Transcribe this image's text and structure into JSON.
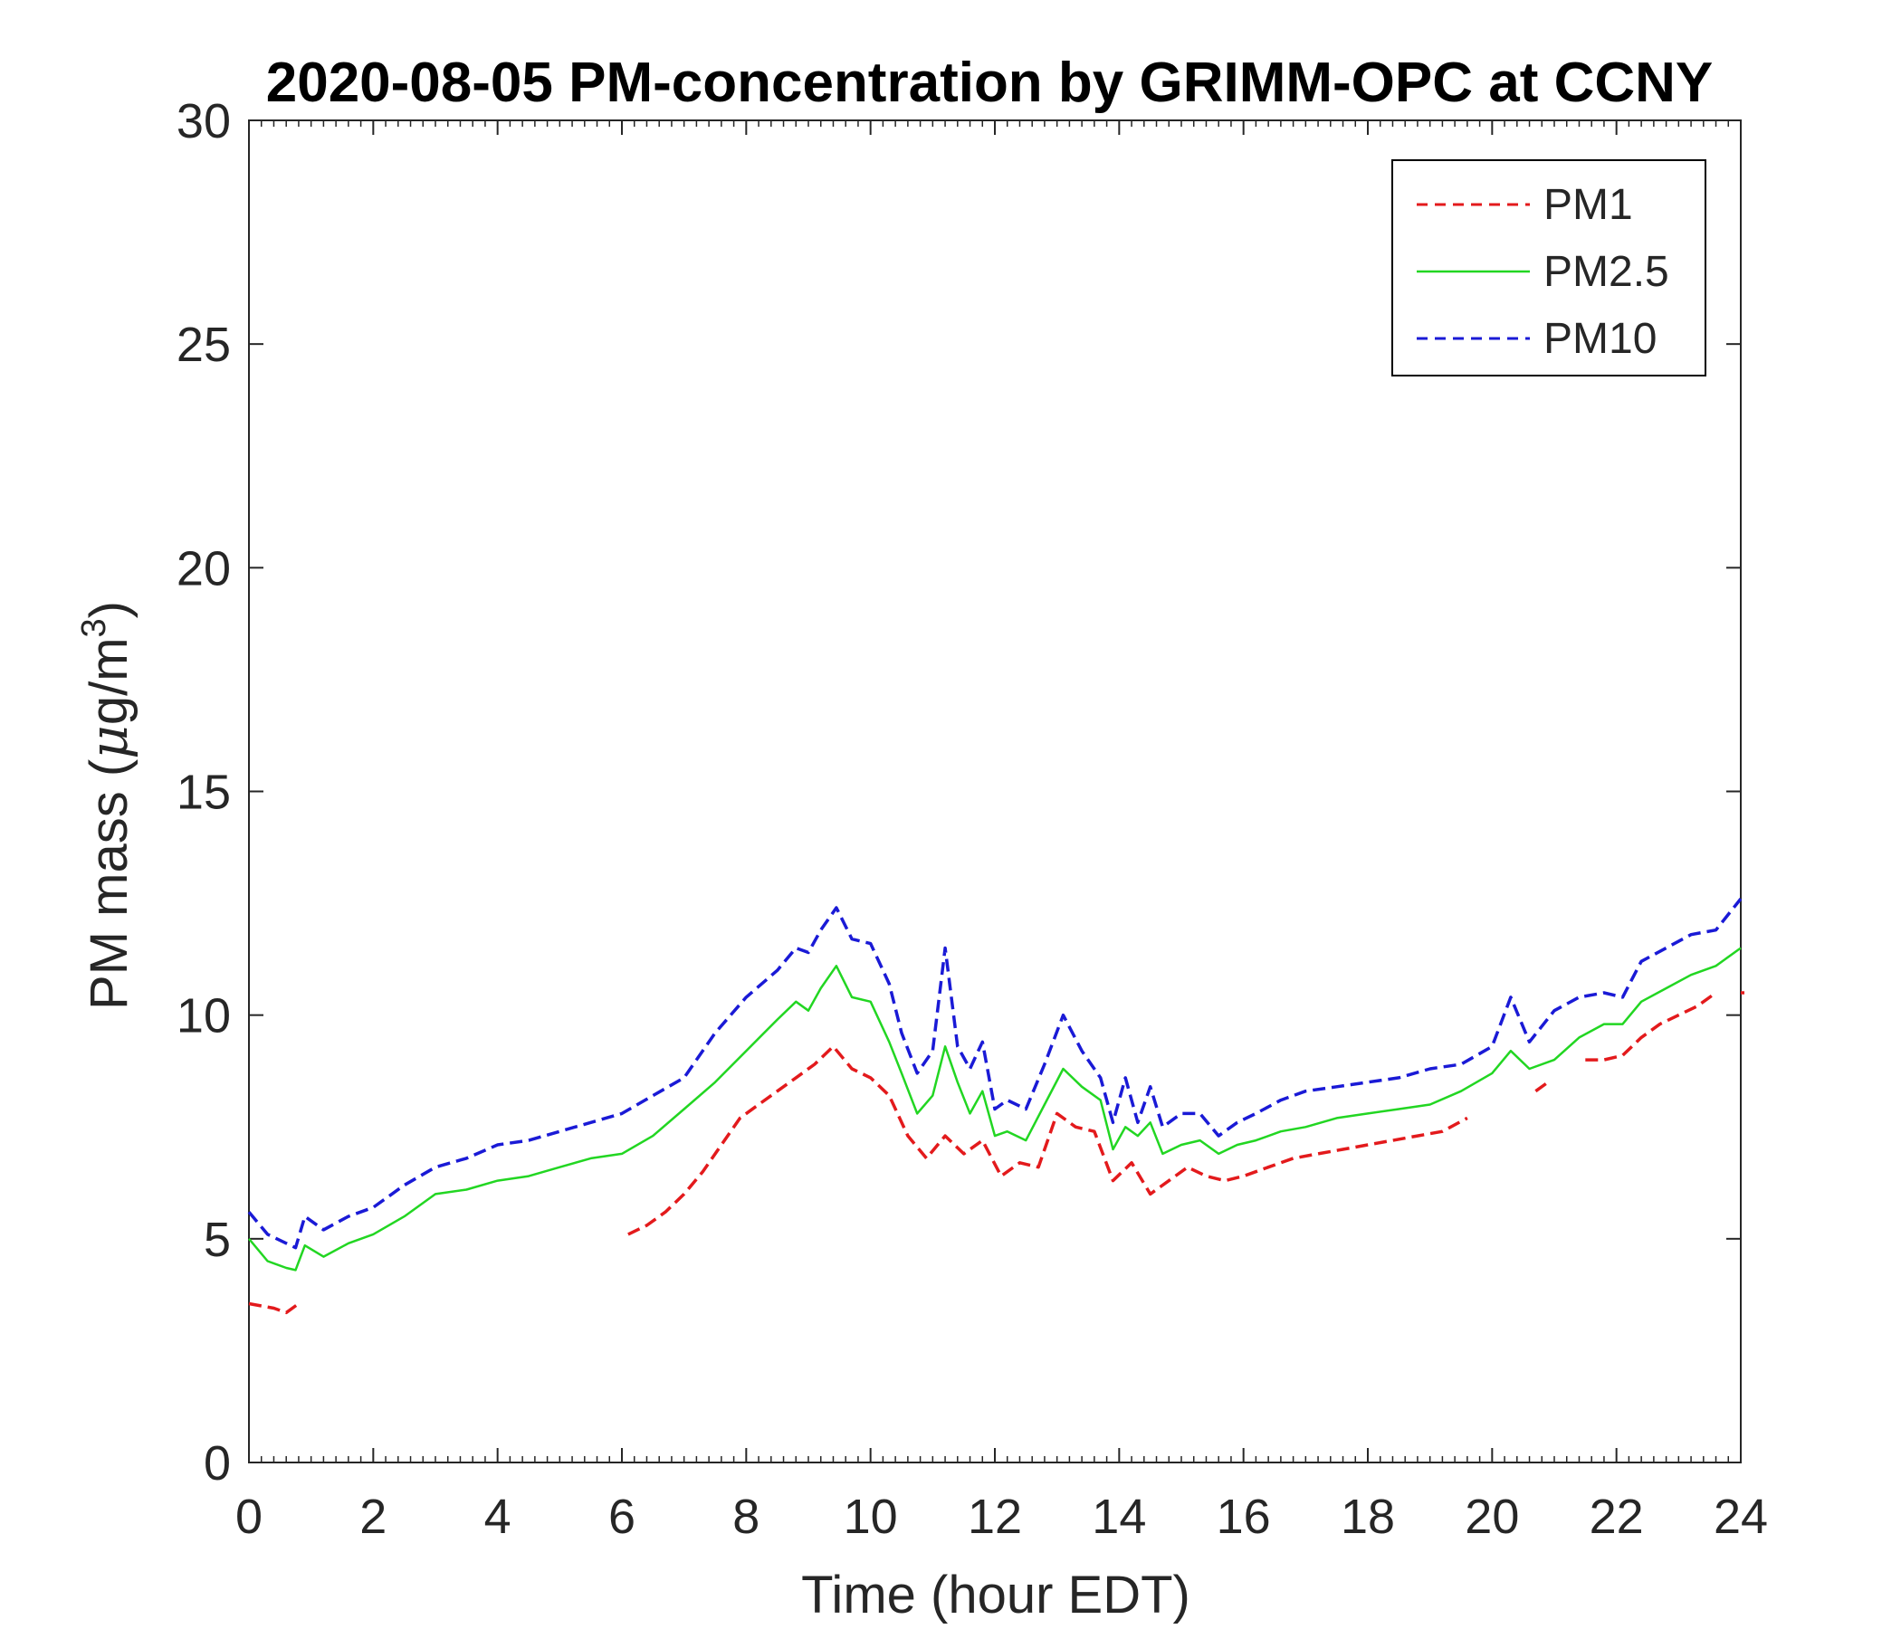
{
  "chart_data": {
    "type": "line",
    "title": "2020-08-05 PM-concentration by GRIMM-OPC at CCNY",
    "xlabel": "Time (hour EDT)",
    "ylabel": "PM mass (",
    "ylabel_mu": "μ",
    "ylabel_unit": "g/m",
    "ylabel_sup": "3",
    "ylabel_close": ")",
    "xlim": [
      0,
      24
    ],
    "ylim": [
      0,
      30
    ],
    "xticks": [
      "0",
      "2",
      "4",
      "6",
      "8",
      "10",
      "12",
      "14",
      "16",
      "18",
      "20",
      "22",
      "24"
    ],
    "yticks": [
      "0",
      "5",
      "10",
      "15",
      "20",
      "25",
      "30"
    ],
    "legend_position": "top-right",
    "series": [
      {
        "name": "PM1",
        "color": "#e31a1c",
        "style": "dashed",
        "x": [
          0,
          0.2,
          0.4,
          0.6,
          0.8,
          null,
          6.1,
          6.4,
          6.7,
          7.0,
          7.3,
          7.6,
          7.9,
          8.2,
          8.5,
          8.8,
          9.1,
          9.4,
          9.7,
          10.0,
          10.3,
          10.6,
          10.9,
          11.2,
          11.5,
          11.8,
          12.1,
          12.4,
          12.7,
          13.0,
          13.3,
          13.6,
          13.9,
          14.2,
          14.5,
          14.8,
          15.1,
          15.4,
          15.7,
          16.0,
          16.4,
          16.8,
          17.2,
          17.6,
          18.0,
          18.4,
          18.8,
          19.2,
          19.6,
          null,
          20.7,
          20.9,
          null,
          21.5,
          21.8,
          22.1,
          22.4,
          22.7,
          23.0,
          23.3,
          23.6,
          null,
          24.0
        ],
        "y": [
          3.55,
          3.5,
          3.45,
          3.35,
          3.55,
          null,
          5.1,
          5.3,
          5.6,
          6.0,
          6.5,
          7.1,
          7.7,
          8.0,
          8.3,
          8.6,
          8.9,
          9.3,
          8.8,
          8.6,
          8.2,
          7.3,
          6.8,
          7.3,
          6.9,
          7.2,
          6.4,
          6.7,
          6.6,
          7.8,
          7.5,
          7.4,
          6.3,
          6.7,
          6.0,
          6.3,
          6.6,
          6.4,
          6.3,
          6.4,
          6.6,
          6.8,
          6.9,
          7.0,
          7.1,
          7.2,
          7.3,
          7.4,
          7.7,
          null,
          8.3,
          8.5,
          null,
          9.0,
          9.0,
          9.1,
          9.5,
          9.8,
          10.0,
          10.2,
          10.5,
          null,
          10.5
        ]
      },
      {
        "name": "PM2.5",
        "color": "#22d622",
        "style": "solid",
        "x": [
          0,
          0.3,
          0.6,
          0.75,
          0.9,
          1.2,
          1.6,
          2.0,
          2.5,
          3.0,
          3.5,
          4.0,
          4.5,
          5.0,
          5.5,
          6.0,
          6.5,
          7.0,
          7.5,
          8.0,
          8.5,
          8.8,
          9.0,
          9.2,
          9.45,
          9.7,
          10.0,
          10.3,
          10.5,
          10.75,
          11.0,
          11.2,
          11.4,
          11.6,
          11.8,
          12.0,
          12.2,
          12.5,
          12.8,
          13.1,
          13.4,
          13.7,
          13.9,
          14.1,
          14.3,
          14.5,
          14.7,
          15.0,
          15.3,
          15.6,
          15.9,
          16.2,
          16.6,
          17.0,
          17.5,
          18.0,
          18.5,
          19.0,
          19.5,
          20.0,
          20.3,
          20.6,
          21.0,
          21.4,
          21.8,
          22.1,
          22.4,
          22.8,
          23.2,
          23.6,
          24.0
        ],
        "y": [
          5.0,
          4.5,
          4.35,
          4.3,
          4.85,
          4.6,
          4.9,
          5.1,
          5.5,
          6.0,
          6.1,
          6.3,
          6.4,
          6.6,
          6.8,
          6.9,
          7.3,
          7.9,
          8.5,
          9.2,
          9.9,
          10.3,
          10.1,
          10.6,
          11.1,
          10.4,
          10.3,
          9.4,
          8.7,
          7.8,
          8.2,
          9.3,
          8.5,
          7.8,
          8.3,
          7.3,
          7.4,
          7.2,
          8.0,
          8.8,
          8.4,
          8.1,
          7.0,
          7.5,
          7.3,
          7.6,
          6.9,
          7.1,
          7.2,
          6.9,
          7.1,
          7.2,
          7.4,
          7.5,
          7.7,
          7.8,
          7.9,
          8.0,
          8.3,
          8.7,
          9.2,
          8.8,
          9.0,
          9.5,
          9.8,
          9.8,
          10.3,
          10.6,
          10.9,
          11.1,
          11.5
        ]
      },
      {
        "name": "PM10",
        "color": "#1a1ad6",
        "style": "dashed",
        "x": [
          0,
          0.3,
          0.6,
          0.75,
          0.9,
          1.2,
          1.6,
          2.0,
          2.5,
          3.0,
          3.5,
          4.0,
          4.5,
          5.0,
          5.5,
          6.0,
          6.5,
          7.0,
          7.5,
          8.0,
          8.5,
          8.8,
          9.0,
          9.2,
          9.45,
          9.7,
          10.0,
          10.3,
          10.5,
          10.75,
          11.0,
          11.2,
          11.4,
          11.6,
          11.8,
          12.0,
          12.2,
          12.5,
          12.8,
          13.1,
          13.4,
          13.7,
          13.9,
          14.1,
          14.3,
          14.5,
          14.7,
          15.0,
          15.3,
          15.6,
          15.9,
          16.2,
          16.6,
          17.0,
          17.5,
          18.0,
          18.5,
          19.0,
          19.5,
          20.0,
          20.3,
          20.6,
          21.0,
          21.4,
          21.8,
          22.1,
          22.4,
          22.8,
          23.2,
          23.6,
          24.0
        ],
        "y": [
          5.6,
          5.1,
          4.9,
          4.8,
          5.5,
          5.2,
          5.5,
          5.7,
          6.2,
          6.6,
          6.8,
          7.1,
          7.2,
          7.4,
          7.6,
          7.8,
          8.2,
          8.6,
          9.6,
          10.4,
          11.0,
          11.5,
          11.4,
          11.9,
          12.4,
          11.7,
          11.6,
          10.7,
          9.6,
          8.7,
          9.2,
          11.5,
          9.3,
          8.8,
          9.4,
          7.9,
          8.1,
          7.9,
          8.9,
          10.0,
          9.2,
          8.6,
          7.6,
          8.6,
          7.6,
          8.4,
          7.5,
          7.8,
          7.8,
          7.3,
          7.6,
          7.8,
          8.1,
          8.3,
          8.4,
          8.5,
          8.6,
          8.8,
          8.9,
          9.3,
          10.4,
          9.4,
          10.1,
          10.4,
          10.5,
          10.4,
          11.2,
          11.5,
          11.8,
          11.9,
          12.6
        ]
      }
    ]
  }
}
